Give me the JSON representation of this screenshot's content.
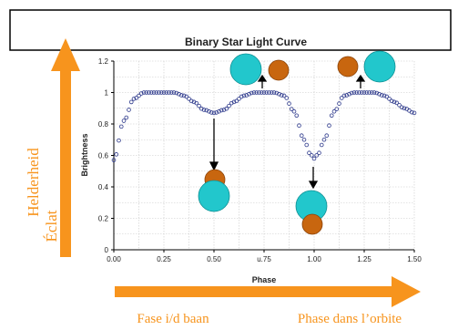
{
  "chart_data": {
    "type": "scatter",
    "title": "Binary Star Light Curve",
    "xlabel": "Phase",
    "ylabel": "Brightness",
    "xlim": [
      0.0,
      1.5
    ],
    "ylim": [
      0.0,
      1.2
    ],
    "x_ticks": [
      "0.00",
      "0.25",
      "0.50",
      "u.75",
      "1.00",
      "1.25",
      "1.50"
    ],
    "y_ticks": [
      "0",
      "0.2",
      "0.4",
      "0.6",
      "0.8",
      "1",
      "1.2"
    ],
    "grid": true,
    "series": [
      {
        "marker": "open-circle",
        "color": "#2e3a8c",
        "x": [
          0.0,
          0.05,
          0.1,
          0.15,
          0.2,
          0.3,
          0.35,
          0.4,
          0.45,
          0.5,
          0.55,
          0.6,
          0.65,
          0.7,
          0.8,
          0.85,
          0.9,
          0.95,
          0.98,
          1.0,
          1.02,
          1.05,
          1.1,
          1.15,
          1.2,
          1.3,
          1.35,
          1.4,
          1.45,
          1.5
        ],
        "y": [
          0.57,
          0.82,
          0.96,
          1.0,
          1.0,
          1.0,
          0.98,
          0.94,
          0.89,
          0.87,
          0.89,
          0.94,
          0.98,
          1.0,
          1.0,
          0.98,
          0.88,
          0.7,
          0.61,
          0.58,
          0.61,
          0.7,
          0.88,
          0.98,
          1.0,
          1.0,
          0.98,
          0.94,
          0.9,
          0.87
        ]
      }
    ],
    "annotations": [
      {
        "type": "arrow",
        "from_phase": 0.5,
        "direction": "down",
        "label": "eclipse-primary-in-front"
      },
      {
        "type": "arrow",
        "from_phase": 1.0,
        "direction": "down",
        "label": "eclipse-secondary-in-front"
      },
      {
        "type": "arrow",
        "from_phase": 0.75,
        "direction": "up",
        "label": "side-by-side"
      },
      {
        "type": "arrow",
        "from_phase": 1.25,
        "direction": "up",
        "label": "side-by-side"
      }
    ]
  },
  "labels": {
    "vertical_dutch": "Helderheid",
    "vertical_french": "Éclat",
    "phase_dutch": "Fase i/d baan",
    "phase_french": "Phase dans l’orbite"
  },
  "colors": {
    "orange": "#f7941d",
    "cyan_star": "#22c7cc",
    "brown_star": "#c8660f",
    "points": "#2e3a8c"
  }
}
